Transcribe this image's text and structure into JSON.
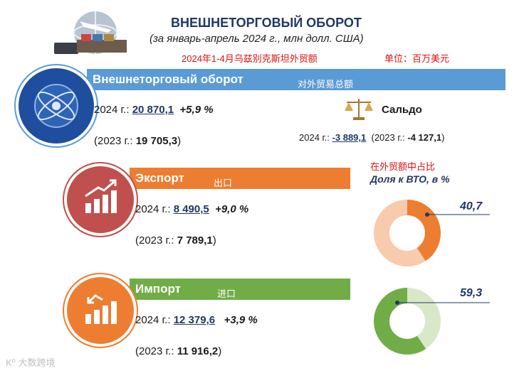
{
  "header": {
    "title": "ВНЕШНЕТОРГОВЫЙ ОБОРОТ",
    "subtitle": "(за январь-апрель 2024 г., млн долл. США)",
    "cn_subtitle": "2024年1-4月乌兹别克斯坦外贸额",
    "cn_unit": "单位：百万美元"
  },
  "turnover": {
    "label": "Внешнеторговый оборот",
    "cn_label": "对外贸易总额",
    "y2024_prefix": "2024 г.:",
    "y2024_value": "20 870,1",
    "y2024_change": "+5,9 %",
    "y2023_prefix": "(2023 г.:",
    "y2023_value": "19 705,3",
    "y2023_suffix": ")"
  },
  "saldo": {
    "label": "Сальдо",
    "y2024_prefix": "2024 г.:",
    "y2024_value": "-3 889,1",
    "y2023_prefix": "(2023 г.:",
    "y2023_value": "-4 127,1",
    "y2023_suffix": ")"
  },
  "export": {
    "label": "Экспорт",
    "cn_label": "出口",
    "y2024_prefix": "2024 г.:",
    "y2024_value": "8 490,5",
    "y2024_change": "+9,0 %",
    "y2023_prefix": "(2023 г.:",
    "y2023_value": "7 789,1",
    "y2023_suffix": ")"
  },
  "import": {
    "label": "Импорт",
    "cn_label": "进口",
    "y2024_prefix": "2024 г.:",
    "y2024_value": "12 379,6",
    "y2024_change": "+3,9 %",
    "y2023_prefix": "(2023 г.:",
    "y2023_value": "11 916,2",
    "y2023_suffix": ")"
  },
  "share": {
    "cn_label": "在外贸额中占比",
    "label": "Доля к ВТО, в %",
    "export_share": "40,7",
    "import_share": "59,3",
    "export_share_value": 40.7,
    "import_share_value": 59.3
  },
  "colors": {
    "navy": "#1f3864",
    "blue_band": "#5b9bd5",
    "orange": "#ed7d31",
    "orange_light": "#f8cbad",
    "green": "#70ad47",
    "green_light": "#d9e8c9",
    "red_icon": "#c0504d"
  },
  "watermark": "大数跨境"
}
